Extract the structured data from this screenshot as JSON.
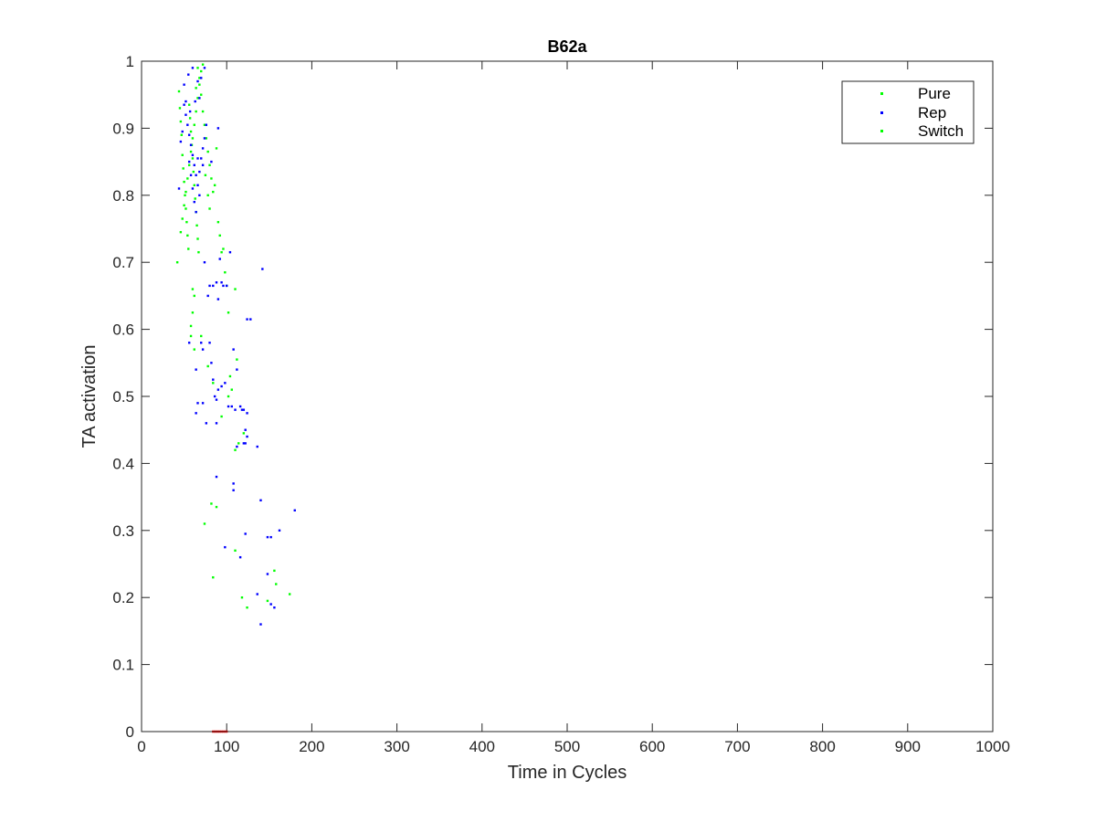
{
  "chart_data": {
    "type": "scatter",
    "title": "B62a",
    "xlabel": "Time in Cycles",
    "ylabel": "TA activation",
    "xlim": [
      0,
      1000
    ],
    "ylim": [
      0,
      1
    ],
    "xticks": [
      "0",
      "100",
      "200",
      "300",
      "400",
      "500",
      "600",
      "700",
      "800",
      "900",
      "1000"
    ],
    "yticks": [
      "0",
      "0.1",
      "0.2",
      "0.3",
      "0.4",
      "0.5",
      "0.6",
      "0.7",
      "0.8",
      "0.9",
      "1"
    ],
    "legend_position": "top-right",
    "grid": false,
    "series": [
      {
        "name": "Pure",
        "color": "#00ff00",
        "points": [
          [
            42,
            0.7
          ],
          [
            44,
            0.955
          ],
          [
            45,
            0.93
          ],
          [
            46,
            0.91
          ],
          [
            47,
            0.89
          ],
          [
            48,
            0.86
          ],
          [
            49,
            0.84
          ],
          [
            50,
            0.82
          ],
          [
            51,
            0.8
          ],
          [
            52,
            0.78
          ],
          [
            53,
            0.76
          ],
          [
            54,
            0.74
          ],
          [
            55,
            0.72
          ],
          [
            56,
            0.935
          ],
          [
            57,
            0.915
          ],
          [
            58,
            0.895
          ],
          [
            59,
            0.875
          ],
          [
            60,
            0.855
          ],
          [
            61,
            0.835
          ],
          [
            62,
            0.815
          ],
          [
            63,
            0.795
          ],
          [
            64,
            0.775
          ],
          [
            65,
            0.755
          ],
          [
            66,
            0.735
          ],
          [
            67,
            0.715
          ],
          [
            68,
            0.975
          ],
          [
            70,
            0.95
          ],
          [
            72,
            0.925
          ],
          [
            74,
            0.905
          ],
          [
            76,
            0.885
          ],
          [
            78,
            0.865
          ],
          [
            80,
            0.845
          ],
          [
            82,
            0.825
          ],
          [
            84,
            0.805
          ],
          [
            46,
            0.745
          ],
          [
            48,
            0.765
          ],
          [
            50,
            0.785
          ],
          [
            52,
            0.805
          ],
          [
            54,
            0.825
          ],
          [
            56,
            0.845
          ],
          [
            58,
            0.865
          ],
          [
            60,
            0.885
          ],
          [
            62,
            0.905
          ],
          [
            64,
            0.925
          ],
          [
            66,
            0.945
          ],
          [
            68,
            0.965
          ],
          [
            70,
            0.985
          ],
          [
            72,
            0.995
          ],
          [
            66,
            0.99
          ],
          [
            64,
            0.96
          ],
          [
            75,
            0.83
          ],
          [
            78,
            0.8
          ],
          [
            80,
            0.78
          ],
          [
            86,
            0.815
          ],
          [
            88,
            0.87
          ],
          [
            90,
            0.76
          ],
          [
            92,
            0.74
          ],
          [
            94,
            0.715
          ],
          [
            96,
            0.72
          ],
          [
            98,
            0.685
          ],
          [
            100,
            0.665
          ],
          [
            102,
            0.625
          ],
          [
            104,
            0.53
          ],
          [
            106,
            0.51
          ],
          [
            110,
            0.66
          ],
          [
            112,
            0.555
          ],
          [
            60,
            0.66
          ],
          [
            62,
            0.65
          ],
          [
            60,
            0.625
          ],
          [
            58,
            0.605
          ]
        ]
      },
      {
        "name": "Rep",
        "color": "#0000ff",
        "points": [
          [
            44,
            0.81
          ],
          [
            46,
            0.88
          ],
          [
            48,
            0.895
          ],
          [
            50,
            0.935
          ],
          [
            52,
            0.92
          ],
          [
            54,
            0.905
          ],
          [
            56,
            0.89
          ],
          [
            58,
            0.875
          ],
          [
            60,
            0.86
          ],
          [
            62,
            0.845
          ],
          [
            64,
            0.83
          ],
          [
            66,
            0.815
          ],
          [
            68,
            0.8
          ],
          [
            70,
            0.855
          ],
          [
            72,
            0.87
          ],
          [
            74,
            0.885
          ],
          [
            76,
            0.905
          ],
          [
            55,
            0.98
          ],
          [
            60,
            0.99
          ],
          [
            66,
            0.97
          ],
          [
            70,
            0.975
          ],
          [
            74,
            0.99
          ],
          [
            50,
            0.965
          ],
          [
            52,
            0.94
          ],
          [
            57,
            0.925
          ],
          [
            63,
            0.94
          ],
          [
            68,
            0.945
          ],
          [
            56,
            0.85
          ],
          [
            58,
            0.83
          ],
          [
            60,
            0.81
          ],
          [
            62,
            0.79
          ],
          [
            64,
            0.775
          ],
          [
            66,
            0.855
          ],
          [
            68,
            0.835
          ],
          [
            72,
            0.845
          ],
          [
            82,
            0.85
          ],
          [
            90,
            0.9
          ],
          [
            74,
            0.7
          ],
          [
            78,
            0.65
          ],
          [
            80,
            0.665
          ],
          [
            84,
            0.665
          ],
          [
            88,
            0.67
          ],
          [
            90,
            0.645
          ],
          [
            92,
            0.705
          ],
          [
            94,
            0.67
          ],
          [
            96,
            0.665
          ],
          [
            100,
            0.665
          ],
          [
            104,
            0.715
          ],
          [
            108,
            0.57
          ],
          [
            112,
            0.54
          ],
          [
            56,
            0.58
          ],
          [
            64,
            0.54
          ],
          [
            70,
            0.58
          ],
          [
            72,
            0.57
          ],
          [
            80,
            0.58
          ],
          [
            82,
            0.55
          ],
          [
            84,
            0.525
          ],
          [
            86,
            0.5
          ],
          [
            88,
            0.495
          ],
          [
            90,
            0.51
          ],
          [
            94,
            0.515
          ],
          [
            98,
            0.52
          ],
          [
            102,
            0.485
          ],
          [
            106,
            0.485
          ],
          [
            110,
            0.48
          ],
          [
            116,
            0.485
          ],
          [
            118,
            0.48
          ],
          [
            120,
            0.48
          ],
          [
            124,
            0.475
          ],
          [
            66,
            0.49
          ],
          [
            72,
            0.49
          ],
          [
            76,
            0.46
          ],
          [
            88,
            0.46
          ],
          [
            64,
            0.475
          ],
          [
            108,
            0.37
          ],
          [
            108,
            0.36
          ],
          [
            88,
            0.38
          ],
          [
            112,
            0.425
          ],
          [
            120,
            0.43
          ],
          [
            122,
            0.43
          ],
          [
            124,
            0.44
          ],
          [
            136,
            0.425
          ],
          [
            140,
            0.345
          ],
          [
            122,
            0.45
          ],
          [
            148,
            0.29
          ],
          [
            152,
            0.29
          ],
          [
            162,
            0.3
          ],
          [
            180,
            0.33
          ],
          [
            122,
            0.295
          ],
          [
            98,
            0.275
          ],
          [
            116,
            0.26
          ],
          [
            148,
            0.235
          ],
          [
            152,
            0.19
          ],
          [
            156,
            0.185
          ],
          [
            136,
            0.205
          ],
          [
            140,
            0.16
          ],
          [
            142,
            0.69
          ],
          [
            124,
            0.615
          ],
          [
            128,
            0.615
          ]
        ]
      },
      {
        "name": "Switch",
        "color": "#00ff00",
        "points": [
          [
            58,
            0.59
          ],
          [
            62,
            0.57
          ],
          [
            70,
            0.59
          ],
          [
            78,
            0.545
          ],
          [
            84,
            0.52
          ],
          [
            94,
            0.47
          ],
          [
            102,
            0.5
          ],
          [
            110,
            0.42
          ],
          [
            114,
            0.43
          ],
          [
            120,
            0.445
          ],
          [
            74,
            0.31
          ],
          [
            82,
            0.34
          ],
          [
            88,
            0.335
          ],
          [
            84,
            0.23
          ],
          [
            110,
            0.27
          ],
          [
            118,
            0.2
          ],
          [
            124,
            0.185
          ],
          [
            156,
            0.24
          ],
          [
            158,
            0.22
          ],
          [
            174,
            0.205
          ],
          [
            148,
            0.195
          ]
        ]
      },
      {
        "name": "",
        "color": "#ff0000",
        "legend": false,
        "points": [
          [
            84,
            0.0
          ],
          [
            86,
            0.0
          ],
          [
            88,
            0.0
          ],
          [
            90,
            0.0
          ],
          [
            92,
            0.0
          ],
          [
            94,
            0.0
          ],
          [
            96,
            0.0
          ],
          [
            98,
            0.0
          ],
          [
            100,
            0.0
          ]
        ]
      }
    ]
  }
}
